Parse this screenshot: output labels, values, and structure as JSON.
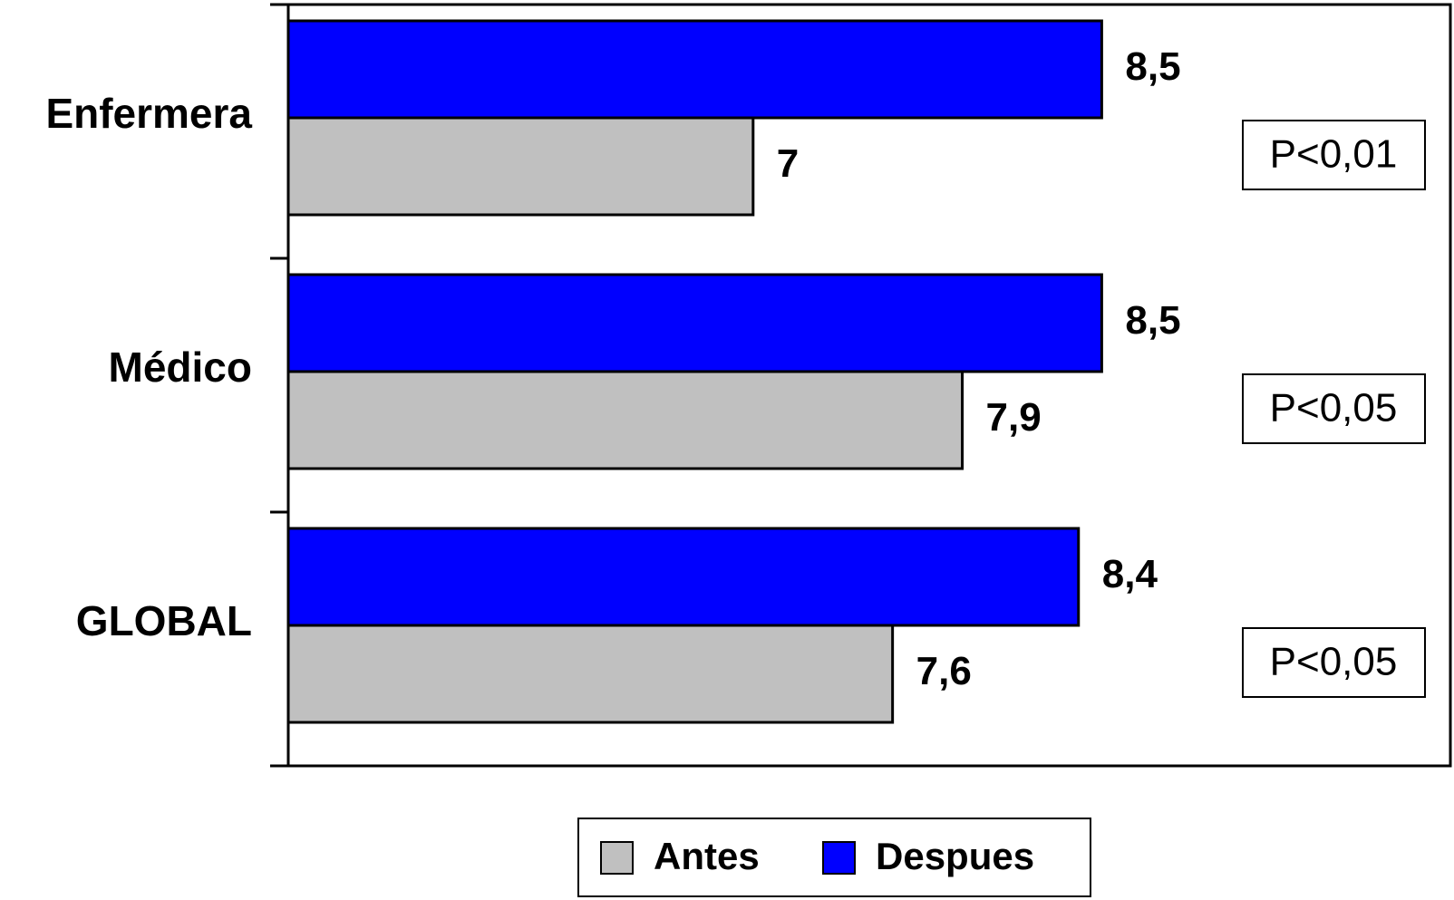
{
  "chart_data": {
    "type": "bar",
    "orientation": "horizontal",
    "categories": [
      "Enfermera",
      "Médico",
      "GLOBAL"
    ],
    "series": [
      {
        "name": "Antes",
        "color": "#c0c0c0",
        "values": [
          7,
          7.9,
          7.6
        ],
        "value_labels": [
          "7",
          "7,9",
          "7,6"
        ]
      },
      {
        "name": "Despues",
        "color": "#0000ff",
        "values": [
          8.5,
          8.5,
          8.4
        ],
        "value_labels": [
          "8,5",
          "8,5",
          "8,4"
        ]
      }
    ],
    "annotations": [
      "P<0,01",
      "P<0,05",
      "P<0,05"
    ],
    "xlim": [
      5,
      10
    ],
    "legend": "bottom"
  }
}
